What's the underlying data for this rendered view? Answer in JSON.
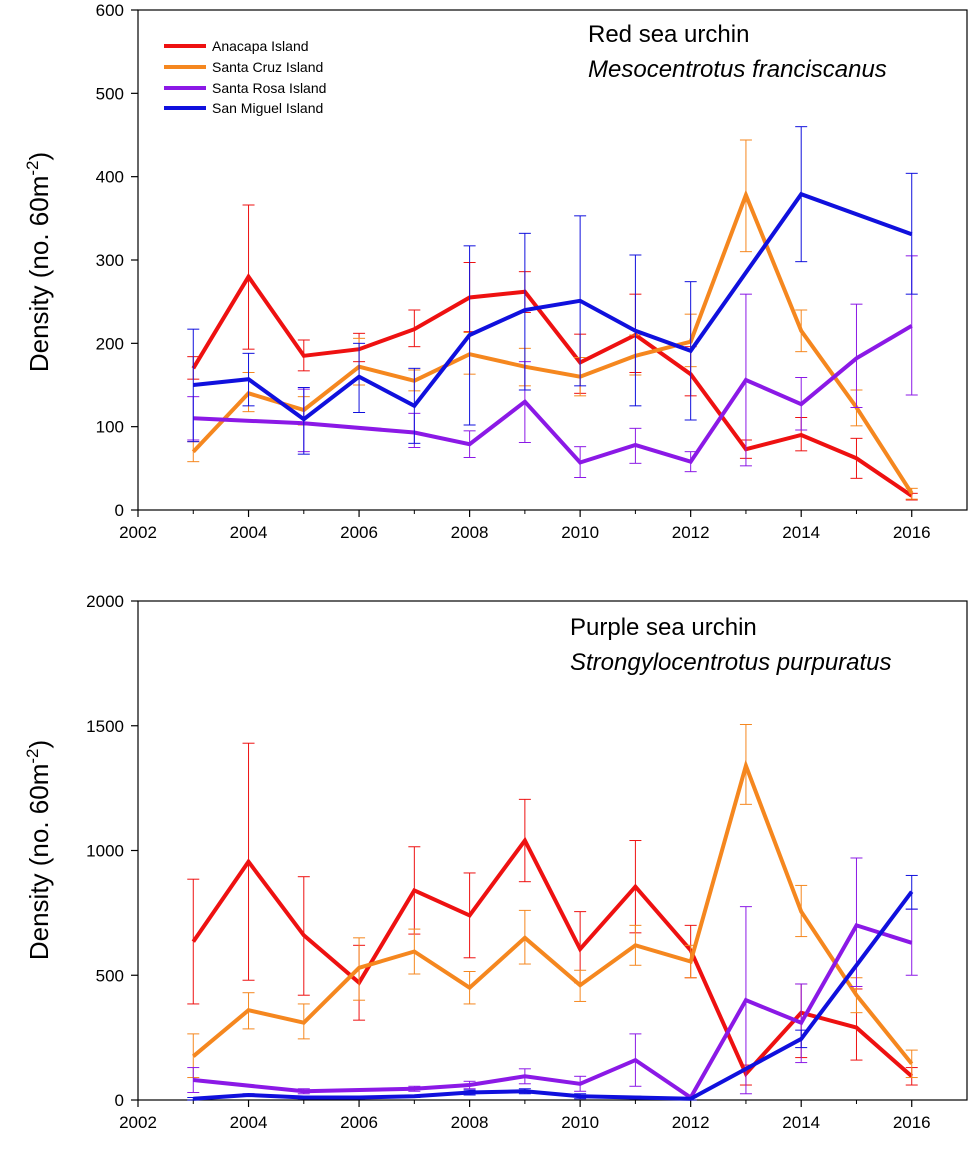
{
  "colors": {
    "anacapa": "#ee1111",
    "santa_cruz": "#f5871f",
    "santa_rosa": "#8b19e6",
    "san_miguel": "#1010dd"
  },
  "chart_data": [
    {
      "type": "line",
      "title": "Red sea urchin",
      "subtitle": "Mesocentrotus franciscanus",
      "ylabel_main": "Density (no. 60m",
      "ylabel_sup": "-2",
      "ylabel_tail": ")",
      "xlabel": "",
      "xlim": [
        2002,
        2017
      ],
      "ylim": [
        0,
        600
      ],
      "xticks": [
        2002,
        2004,
        2006,
        2008,
        2010,
        2012,
        2014,
        2016
      ],
      "yticks": [
        0,
        100,
        200,
        300,
        400,
        500,
        600
      ],
      "legend": "top-left",
      "series": [
        {
          "name": "Anacapa Island",
          "color_key": "anacapa",
          "x": [
            2003,
            2004,
            2005,
            2006,
            2007,
            2008,
            2009,
            2010,
            2011,
            2012,
            2013,
            2014,
            2015,
            2016
          ],
          "y": [
            170,
            280,
            185,
            193,
            217,
            255,
            262,
            177,
            210,
            163,
            73,
            90,
            62,
            17
          ],
          "err_low": [
            157,
            193,
            167,
            178,
            196,
            214,
            237,
            140,
            165,
            137,
            62,
            71,
            38,
            12
          ],
          "err_high": [
            184,
            366,
            204,
            212,
            240,
            297,
            286,
            211,
            259,
            196,
            84,
            111,
            86,
            20
          ]
        },
        {
          "name": "Santa Cruz Island",
          "color_key": "santa_cruz",
          "x": [
            2003,
            2004,
            2005,
            2006,
            2007,
            2008,
            2009,
            2010,
            2011,
            2012,
            2013,
            2014,
            2015,
            2016
          ],
          "y": [
            70,
            140,
            120,
            172,
            155,
            187,
            172,
            160,
            185,
            202,
            378,
            215,
            123,
            20
          ],
          "err_low": [
            58,
            118,
            102,
            150,
            143,
            163,
            149,
            137,
            162,
            172,
            310,
            190,
            101,
            13
          ],
          "err_high": [
            82,
            165,
            136,
            206,
            168,
            213,
            194,
            183,
            210,
            235,
            444,
            240,
            144,
            26
          ]
        },
        {
          "name": "Santa Rosa Island",
          "color_key": "santa_rosa",
          "x": [
            2003,
            2005,
            2007,
            2008,
            2009,
            2010,
            2011,
            2012,
            2013,
            2014,
            2015,
            2016
          ],
          "y": [
            110,
            104,
            93,
            79,
            130,
            57,
            78,
            58,
            156,
            127,
            182,
            221
          ],
          "err_low": [
            84,
            70,
            75,
            63,
            81,
            39,
            56,
            46,
            53,
            96,
            123,
            138
          ],
          "err_high": [
            136,
            145,
            116,
            95,
            178,
            76,
            98,
            70,
            259,
            159,
            247,
            305
          ]
        },
        {
          "name": "San Miguel Island",
          "color_key": "san_miguel",
          "x": [
            2003,
            2004,
            2005,
            2006,
            2007,
            2008,
            2009,
            2010,
            2011,
            2012,
            2014,
            2016
          ],
          "y": [
            150,
            157,
            109,
            160,
            125,
            210,
            240,
            251,
            215,
            191,
            379,
            331
          ],
          "err_low": [
            82,
            125,
            67,
            117,
            80,
            102,
            144,
            149,
            125,
            108,
            298,
            259
          ],
          "err_high": [
            217,
            188,
            147,
            200,
            170,
            317,
            332,
            353,
            306,
            274,
            460,
            404
          ]
        }
      ]
    },
    {
      "type": "line",
      "title": "Purple sea urchin",
      "subtitle": "Strongylocentrotus purpuratus",
      "ylabel_main": "Density (no. 60m",
      "ylabel_sup": "-2",
      "ylabel_tail": ")",
      "xlabel": "",
      "xlim": [
        2002,
        2017
      ],
      "ylim": [
        0,
        2000
      ],
      "xticks": [
        2002,
        2004,
        2006,
        2008,
        2010,
        2012,
        2014,
        2016
      ],
      "yticks": [
        0,
        500,
        1000,
        1500,
        2000
      ],
      "series": [
        {
          "name": "Anacapa Island",
          "color_key": "anacapa",
          "x": [
            2003,
            2004,
            2005,
            2006,
            2007,
            2008,
            2009,
            2010,
            2011,
            2012,
            2013,
            2014,
            2015,
            2016
          ],
          "y": [
            635,
            955,
            660,
            470,
            840,
            740,
            1040,
            605,
            855,
            600,
            105,
            350,
            290,
            95
          ],
          "err_low": [
            385,
            480,
            420,
            320,
            665,
            570,
            875,
            470,
            670,
            490,
            60,
            170,
            160,
            60
          ],
          "err_high": [
            885,
            1430,
            895,
            620,
            1015,
            910,
            1205,
            755,
            1040,
            700,
            140,
            465,
            445,
            130
          ]
        },
        {
          "name": "Santa Cruz Island",
          "color_key": "santa_cruz",
          "x": [
            2003,
            2004,
            2005,
            2006,
            2007,
            2008,
            2009,
            2010,
            2011,
            2012,
            2013,
            2014,
            2015,
            2016
          ],
          "y": [
            175,
            360,
            310,
            530,
            595,
            450,
            650,
            460,
            620,
            555,
            1340,
            755,
            420,
            145
          ],
          "err_low": [
            90,
            285,
            245,
            400,
            505,
            385,
            545,
            395,
            540,
            490,
            1185,
            655,
            350,
            90
          ],
          "err_high": [
            265,
            430,
            385,
            650,
            685,
            515,
            760,
            520,
            700,
            620,
            1505,
            860,
            490,
            200
          ]
        },
        {
          "name": "Santa Rosa Island",
          "color_key": "santa_rosa",
          "x": [
            2003,
            2005,
            2007,
            2008,
            2009,
            2010,
            2011,
            2012,
            2013,
            2014,
            2015,
            2016
          ],
          "y": [
            80,
            35,
            45,
            60,
            95,
            65,
            160,
            10,
            400,
            310,
            700,
            630
          ],
          "err_low": [
            30,
            25,
            35,
            45,
            65,
            35,
            55,
            0,
            25,
            150,
            455,
            500
          ],
          "err_high": [
            130,
            45,
            55,
            75,
            125,
            95,
            265,
            20,
            775,
            465,
            970,
            765
          ]
        },
        {
          "name": "San Miguel Island",
          "color_key": "san_miguel",
          "x": [
            2003,
            2004,
            2005,
            2006,
            2007,
            2008,
            2009,
            2010,
            2011,
            2012,
            2014,
            2016
          ],
          "y": [
            5,
            20,
            10,
            10,
            15,
            30,
            35,
            15,
            10,
            5,
            245,
            835
          ],
          "err_low": [
            0,
            15,
            5,
            5,
            10,
            20,
            25,
            5,
            5,
            0,
            210,
            765
          ],
          "err_high": [
            10,
            25,
            15,
            15,
            20,
            40,
            45,
            25,
            15,
            10,
            280,
            900
          ]
        }
      ]
    }
  ]
}
